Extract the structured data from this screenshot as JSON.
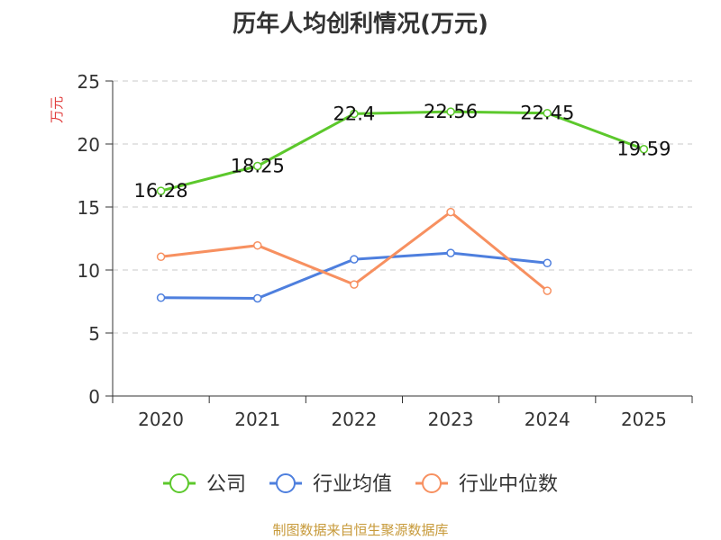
{
  "chart_data": {
    "type": "line",
    "title": "历年人均创利情况(万元)",
    "ylabel": "万元",
    "xlabel": "",
    "categories": [
      "2020",
      "2021",
      "2022",
      "2023",
      "2024",
      "2025"
    ],
    "ylim": [
      0,
      25
    ],
    "yticks": [
      0,
      5,
      10,
      15,
      20,
      25
    ],
    "grid": true,
    "legend_position": "bottom",
    "series": [
      {
        "name": "公司",
        "color": "#5cc82c",
        "values": [
          16.28,
          18.25,
          22.4,
          22.56,
          22.45,
          19.59
        ],
        "show_labels": true
      },
      {
        "name": "行业均值",
        "color": "#4e7fde",
        "values": [
          7.8,
          7.75,
          10.85,
          11.35,
          10.55,
          null
        ],
        "show_labels": false
      },
      {
        "name": "行业中位数",
        "color": "#f79060",
        "values": [
          11.05,
          11.95,
          8.85,
          14.6,
          8.35,
          null
        ],
        "show_labels": false
      }
    ]
  },
  "source_note": "制图数据来自恒生聚源数据库"
}
